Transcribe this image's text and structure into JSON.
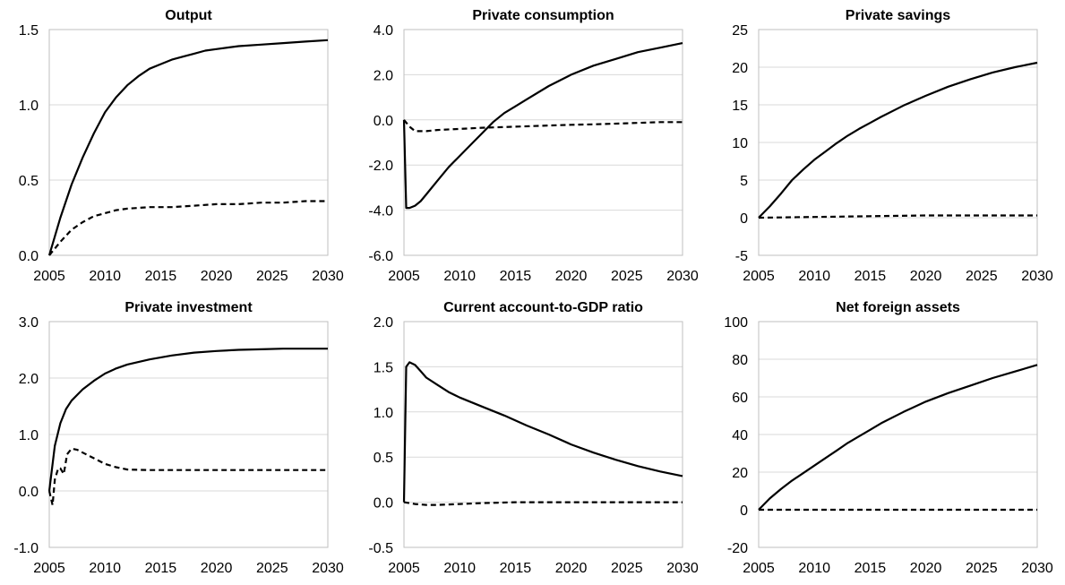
{
  "chart_data": [
    {
      "type": "line",
      "title": "Output",
      "xlim": [
        2005,
        2030
      ],
      "ylim": [
        0,
        1.5
      ],
      "yticks": [
        "0.0",
        "0.5",
        "1.0",
        "1.5"
      ],
      "xticks": [
        "2005",
        "2010",
        "2015",
        "2020",
        "2025",
        "2030"
      ],
      "grid": true,
      "series": [
        {
          "style": "solid",
          "x": [
            2005,
            2006,
            2007,
            2008,
            2009,
            2010,
            2011,
            2012,
            2013,
            2014,
            2015,
            2016,
            2017,
            2018,
            2019,
            2020,
            2022,
            2024,
            2026,
            2028,
            2030
          ],
          "y": [
            0.0,
            0.25,
            0.47,
            0.65,
            0.81,
            0.95,
            1.05,
            1.13,
            1.19,
            1.24,
            1.27,
            1.3,
            1.32,
            1.34,
            1.36,
            1.37,
            1.39,
            1.4,
            1.41,
            1.42,
            1.43
          ]
        },
        {
          "style": "dashed",
          "x": [
            2005,
            2006,
            2007,
            2008,
            2009,
            2010,
            2011,
            2012,
            2014,
            2016,
            2018,
            2020,
            2022,
            2024,
            2026,
            2028,
            2030
          ],
          "y": [
            0.0,
            0.09,
            0.17,
            0.22,
            0.26,
            0.28,
            0.3,
            0.31,
            0.32,
            0.32,
            0.33,
            0.34,
            0.34,
            0.35,
            0.35,
            0.36,
            0.36
          ]
        }
      ]
    },
    {
      "type": "line",
      "title": "Private consumption",
      "xlim": [
        2005,
        2030
      ],
      "ylim": [
        -6,
        4
      ],
      "yticks": [
        "-6.0",
        "-4.0",
        "-2.0",
        "0.0",
        "2.0",
        "4.0"
      ],
      "xticks": [
        "2005",
        "2010",
        "2015",
        "2020",
        "2025",
        "2030"
      ],
      "grid": true,
      "series": [
        {
          "style": "solid",
          "x": [
            2005,
            2005.2,
            2005.5,
            2006,
            2006.5,
            2007,
            2008,
            2009,
            2010,
            2011,
            2012,
            2013,
            2014,
            2015,
            2016,
            2018,
            2020,
            2022,
            2024,
            2026,
            2028,
            2030
          ],
          "y": [
            0.0,
            -3.9,
            -3.9,
            -3.8,
            -3.6,
            -3.3,
            -2.7,
            -2.1,
            -1.6,
            -1.1,
            -0.6,
            -0.1,
            0.3,
            0.6,
            0.9,
            1.5,
            2.0,
            2.4,
            2.7,
            3.0,
            3.2,
            3.4
          ]
        },
        {
          "style": "dashed",
          "x": [
            2005,
            2005.5,
            2006,
            2007,
            2008,
            2010,
            2012,
            2015,
            2018,
            2020,
            2022,
            2025,
            2028,
            2030
          ],
          "y": [
            0.0,
            -0.3,
            -0.5,
            -0.5,
            -0.45,
            -0.4,
            -0.35,
            -0.3,
            -0.25,
            -0.22,
            -0.2,
            -0.15,
            -0.1,
            -0.1
          ]
        }
      ]
    },
    {
      "type": "line",
      "title": "Private savings",
      "xlim": [
        2005,
        2030
      ],
      "ylim": [
        -5,
        25
      ],
      "yticks": [
        "-5",
        "0",
        "5",
        "10",
        "15",
        "20",
        "25"
      ],
      "xticks": [
        "2005",
        "2010",
        "2015",
        "2020",
        "2025",
        "2030"
      ],
      "grid": true,
      "series": [
        {
          "style": "solid",
          "x": [
            2005,
            2006,
            2007,
            2008,
            2009,
            2010,
            2011,
            2012,
            2013,
            2014,
            2015,
            2016,
            2018,
            2020,
            2022,
            2024,
            2026,
            2028,
            2030
          ],
          "y": [
            0.0,
            1.5,
            3.2,
            5.0,
            6.4,
            7.7,
            8.8,
            9.9,
            10.9,
            11.8,
            12.6,
            13.4,
            14.9,
            16.2,
            17.4,
            18.4,
            19.3,
            20.0,
            20.6
          ]
        },
        {
          "style": "dashed",
          "x": [
            2005,
            2010,
            2015,
            2020,
            2025,
            2030
          ],
          "y": [
            0.0,
            0.1,
            0.2,
            0.3,
            0.3,
            0.3
          ]
        }
      ]
    },
    {
      "type": "line",
      "title": "Private investment",
      "xlim": [
        2005,
        2030
      ],
      "ylim": [
        -1,
        3
      ],
      "yticks": [
        "-1.0",
        "0.0",
        "1.0",
        "2.0",
        "3.0"
      ],
      "xticks": [
        "2005",
        "2010",
        "2015",
        "2020",
        "2025",
        "2030"
      ],
      "grid": true,
      "series": [
        {
          "style": "solid",
          "x": [
            2005,
            2005.5,
            2006,
            2006.5,
            2007,
            2007.5,
            2008,
            2009,
            2010,
            2011,
            2012,
            2014,
            2016,
            2018,
            2020,
            2022,
            2024,
            2026,
            2028,
            2030
          ],
          "y": [
            0.0,
            0.8,
            1.2,
            1.45,
            1.6,
            1.7,
            1.8,
            1.95,
            2.08,
            2.17,
            2.24,
            2.33,
            2.4,
            2.45,
            2.48,
            2.5,
            2.51,
            2.52,
            2.52,
            2.52
          ]
        },
        {
          "style": "dashed",
          "x": [
            2005,
            2005.3,
            2005.5,
            2005.8,
            2006,
            2006.3,
            2006.6,
            2007,
            2007.5,
            2008,
            2009,
            2010,
            2011,
            2012,
            2014,
            2016,
            2020,
            2025,
            2030
          ],
          "y": [
            0.0,
            -0.25,
            0.2,
            0.4,
            0.4,
            0.3,
            0.65,
            0.75,
            0.73,
            0.68,
            0.58,
            0.48,
            0.42,
            0.38,
            0.37,
            0.37,
            0.37,
            0.37,
            0.37
          ]
        }
      ]
    },
    {
      "type": "line",
      "title": "Current account-to-GDP ratio",
      "xlim": [
        2005,
        2030
      ],
      "ylim": [
        -0.5,
        2.0
      ],
      "yticks": [
        "-0.5",
        "0.0",
        "0.5",
        "1.0",
        "1.5",
        "2.0"
      ],
      "xticks": [
        "2005",
        "2010",
        "2015",
        "2020",
        "2025",
        "2030"
      ],
      "grid": true,
      "series": [
        {
          "style": "solid",
          "x": [
            2005,
            2005.2,
            2005.5,
            2006,
            2006.5,
            2007,
            2008,
            2009,
            2010,
            2012,
            2014,
            2016,
            2018,
            2020,
            2022,
            2024,
            2026,
            2028,
            2030
          ],
          "y": [
            0.0,
            1.5,
            1.55,
            1.52,
            1.45,
            1.38,
            1.3,
            1.22,
            1.16,
            1.06,
            0.96,
            0.85,
            0.75,
            0.64,
            0.55,
            0.47,
            0.4,
            0.34,
            0.29
          ]
        },
        {
          "style": "dashed",
          "x": [
            2005,
            2006,
            2007,
            2008,
            2010,
            2012,
            2015,
            2020,
            2025,
            2030
          ],
          "y": [
            0.0,
            -0.02,
            -0.03,
            -0.03,
            -0.02,
            -0.01,
            0.0,
            0.0,
            0.0,
            0.0
          ]
        }
      ]
    },
    {
      "type": "line",
      "title": "Net foreign assets",
      "xlim": [
        2005,
        2030
      ],
      "ylim": [
        -20,
        100
      ],
      "yticks": [
        "-20",
        "0",
        "20",
        "40",
        "60",
        "80",
        "100"
      ],
      "xticks": [
        "2005",
        "2010",
        "2015",
        "2020",
        "2025",
        "2030"
      ],
      "grid": true,
      "series": [
        {
          "style": "solid",
          "x": [
            2005,
            2006,
            2007,
            2008,
            2009,
            2010,
            2011,
            2012,
            2013,
            2014,
            2015,
            2016,
            2018,
            2020,
            2022,
            2024,
            2026,
            2028,
            2030
          ],
          "y": [
            0.0,
            6,
            11,
            15.5,
            19.5,
            23.5,
            27.5,
            31.5,
            35.5,
            39,
            42.5,
            46,
            52,
            57.5,
            62,
            66,
            70,
            73.5,
            77
          ]
        },
        {
          "style": "dashed",
          "x": [
            2005,
            2030
          ],
          "y": [
            0.0,
            0.0
          ]
        }
      ]
    }
  ]
}
